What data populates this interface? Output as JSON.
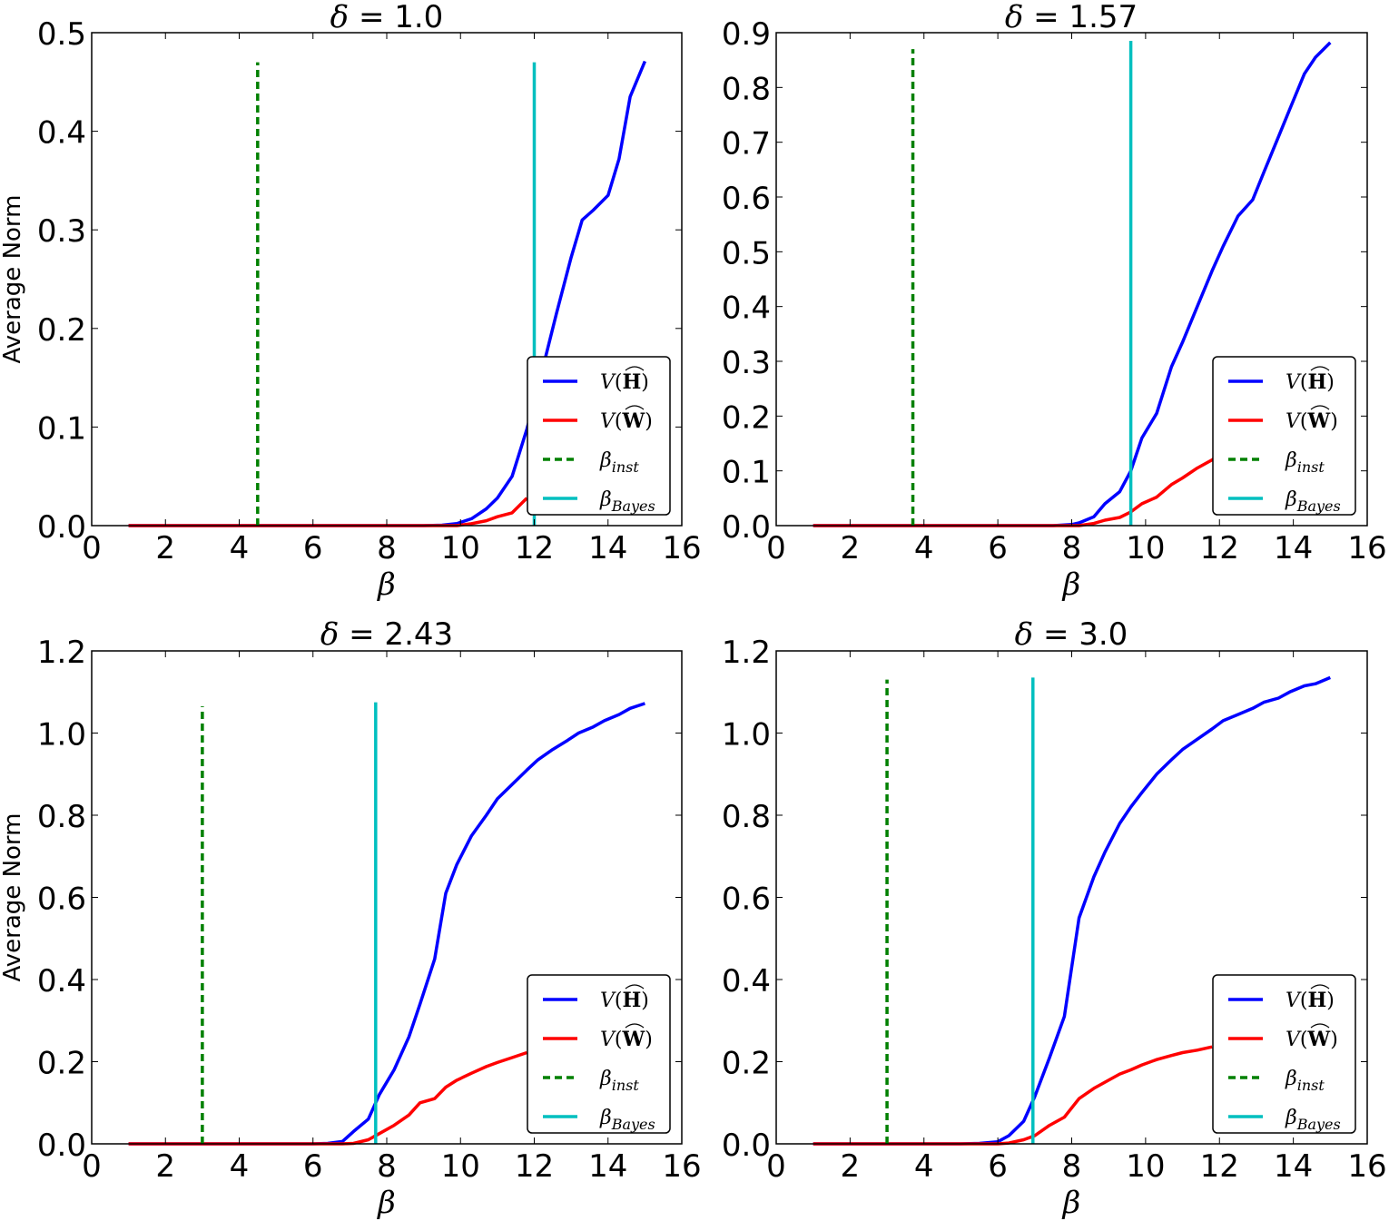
{
  "figure": {
    "ylabel": "Average Norm",
    "xlabel": "β"
  },
  "legend": {
    "items": [
      {
        "label": "V(Ĥ)",
        "label_main": "V(",
        "label_bold": "H",
        "label_end": ")",
        "color": "#0000ff",
        "style": "solid"
      },
      {
        "label": "V(Ŵ)",
        "label_main": "V(",
        "label_bold": "W",
        "label_end": ")",
        "color": "#ff0000",
        "style": "solid"
      },
      {
        "label": "β_inst",
        "label_main": "β",
        "label_sub": "inst",
        "color": "#008000",
        "style": "dashed"
      },
      {
        "label": "β_Bayes",
        "label_main": "β",
        "label_sub": "Bayes",
        "color": "#00bfbf",
        "style": "solid"
      }
    ]
  },
  "chart_data": [
    {
      "type": "line",
      "title": "δ = 1.0",
      "title_symbol": "δ",
      "title_value": "1.0",
      "xlabel": "β",
      "ylabel": "Average Norm",
      "xlim": [
        0,
        16
      ],
      "ylim": [
        0,
        0.5
      ],
      "xticks": [
        0,
        2,
        4,
        6,
        8,
        10,
        12,
        14,
        16
      ],
      "yticks": [
        0.0,
        0.1,
        0.2,
        0.3,
        0.4,
        0.5
      ],
      "ytick_labels": [
        "0.0",
        "0.1",
        "0.2",
        "0.3",
        "0.4",
        "0.5"
      ],
      "legend_position": "lower right",
      "grid": false,
      "x": [
        1.0,
        2.0,
        3.0,
        4.0,
        5.0,
        6.0,
        7.0,
        8.0,
        9.0,
        9.5,
        9.9,
        10.3,
        10.7,
        11.0,
        11.4,
        11.8,
        12.2,
        12.6,
        13.0,
        13.3,
        13.6,
        14.0,
        14.3,
        14.6,
        15.0
      ],
      "series": [
        {
          "name": "V(Ĥ)",
          "color": "#0000ff",
          "values": [
            0,
            0,
            0,
            0,
            0,
            0,
            0,
            0,
            0,
            0.0005,
            0.002,
            0.007,
            0.017,
            0.028,
            0.05,
            0.098,
            0.155,
            0.215,
            0.272,
            0.31,
            0.32,
            0.335,
            0.372,
            0.435,
            0.471
          ]
        },
        {
          "name": "V(Ŵ)",
          "color": "#ff0000",
          "values": [
            0,
            0,
            0,
            0,
            0,
            0,
            0,
            0,
            0,
            0,
            0,
            0.002,
            0.005,
            0.009,
            0.013,
            0.028,
            null,
            null,
            null,
            null,
            null,
            null,
            null,
            null,
            null
          ]
        }
      ],
      "vlines": [
        {
          "name": "β_inst",
          "x": 4.5,
          "ymax": 0.47,
          "color": "#008000",
          "style": "dashed"
        },
        {
          "name": "β_Bayes",
          "x": 12.0,
          "ymax": 0.47,
          "color": "#00bfbf",
          "style": "solid"
        }
      ]
    },
    {
      "type": "line",
      "title": "δ = 1.57",
      "title_symbol": "δ",
      "title_value": "1.57",
      "xlabel": "β",
      "ylabel": "",
      "xlim": [
        0,
        16
      ],
      "ylim": [
        0,
        0.9
      ],
      "xticks": [
        0,
        2,
        4,
        6,
        8,
        10,
        12,
        14,
        16
      ],
      "yticks": [
        0.0,
        0.1,
        0.2,
        0.3,
        0.4,
        0.5,
        0.6,
        0.7,
        0.8,
        0.9
      ],
      "ytick_labels": [
        "0.0",
        "0.1",
        "0.2",
        "0.3",
        "0.4",
        "0.5",
        "0.6",
        "0.7",
        "0.8",
        "0.9"
      ],
      "legend_position": "lower right",
      "grid": false,
      "x": [
        1.0,
        2.0,
        3.0,
        4.0,
        5.0,
        6.0,
        7.0,
        7.5,
        8.0,
        8.2,
        8.6,
        8.9,
        9.3,
        9.6,
        9.9,
        10.3,
        10.7,
        11.0,
        11.4,
        11.8,
        12.1,
        12.5,
        12.9,
        13.2,
        13.6,
        13.9,
        14.3,
        14.6,
        15.0
      ],
      "series": [
        {
          "name": "V(Ĥ)",
          "color": "#0000ff",
          "values": [
            0,
            0,
            0,
            0,
            0,
            0,
            0,
            0,
            0.002,
            0.005,
            0.016,
            0.04,
            0.062,
            0.1,
            0.16,
            0.205,
            0.29,
            0.335,
            0.4,
            0.465,
            0.51,
            0.565,
            0.595,
            0.645,
            0.71,
            0.76,
            0.825,
            0.855,
            0.882
          ]
        },
        {
          "name": "V(Ŵ)",
          "color": "#ff0000",
          "values": [
            0,
            0,
            0,
            0,
            0,
            0,
            0,
            0,
            0,
            0,
            0.004,
            0.01,
            0.015,
            0.025,
            0.04,
            0.052,
            0.075,
            0.087,
            0.105,
            0.12,
            0.135,
            null,
            null,
            null,
            null,
            null,
            null,
            null,
            null
          ]
        }
      ],
      "vlines": [
        {
          "name": "β_inst",
          "x": 3.7,
          "ymax": 0.87,
          "color": "#008000",
          "style": "dashed"
        },
        {
          "name": "β_Bayes",
          "x": 9.6,
          "ymax": 0.885,
          "color": "#00bfbf",
          "style": "solid"
        }
      ]
    },
    {
      "type": "line",
      "title": "δ = 2.43",
      "title_symbol": "δ",
      "title_value": "2.43",
      "xlabel": "β",
      "ylabel": "Average Norm",
      "xlim": [
        0,
        16
      ],
      "ylim": [
        0,
        1.2
      ],
      "xticks": [
        0,
        2,
        4,
        6,
        8,
        10,
        12,
        14,
        16
      ],
      "yticks": [
        0.0,
        0.2,
        0.4,
        0.6,
        0.8,
        1.0,
        1.2
      ],
      "ytick_labels": [
        "0.0",
        "0.2",
        "0.4",
        "0.6",
        "0.8",
        "1.0",
        "1.2"
      ],
      "legend_position": "lower right",
      "grid": false,
      "x": [
        1.0,
        2.0,
        3.0,
        4.0,
        5.0,
        6.0,
        6.4,
        6.8,
        7.1,
        7.5,
        7.8,
        8.2,
        8.6,
        8.9,
        9.3,
        9.6,
        9.9,
        10.3,
        10.7,
        11.0,
        11.4,
        11.8,
        12.1,
        12.5,
        12.9,
        13.2,
        13.6,
        13.9,
        14.3,
        14.6,
        15.0
      ],
      "series": [
        {
          "name": "V(Ĥ)",
          "color": "#0000ff",
          "values": [
            0,
            0,
            0,
            0,
            0,
            0,
            0.001,
            0.006,
            0.03,
            0.06,
            0.12,
            0.18,
            0.26,
            0.34,
            0.45,
            0.61,
            0.68,
            0.75,
            0.8,
            0.84,
            0.875,
            0.91,
            0.935,
            0.96,
            0.982,
            1.0,
            1.015,
            1.03,
            1.045,
            1.06,
            1.072
          ]
        },
        {
          "name": "V(Ŵ)",
          "color": "#ff0000",
          "values": [
            0,
            0,
            0,
            0,
            0,
            0,
            0,
            0,
            0.001,
            0.01,
            0.025,
            0.045,
            0.07,
            0.1,
            0.11,
            0.138,
            0.155,
            0.172,
            0.188,
            0.198,
            0.21,
            0.222,
            null,
            null,
            null,
            null,
            null,
            null,
            null,
            null,
            null
          ]
        }
      ],
      "vlines": [
        {
          "name": "β_inst",
          "x": 3.0,
          "ymax": 1.065,
          "color": "#008000",
          "style": "dashed"
        },
        {
          "name": "β_Bayes",
          "x": 7.7,
          "ymax": 1.075,
          "color": "#00bfbf",
          "style": "solid"
        }
      ]
    },
    {
      "type": "line",
      "title": "δ = 3.0",
      "title_symbol": "δ",
      "title_value": "3.0",
      "xlabel": "β",
      "ylabel": "",
      "xlim": [
        0,
        16
      ],
      "ylim": [
        0,
        1.2
      ],
      "xticks": [
        0,
        2,
        4,
        6,
        8,
        10,
        12,
        14,
        16
      ],
      "yticks": [
        0.0,
        0.2,
        0.4,
        0.6,
        0.8,
        1.0,
        1.2
      ],
      "ytick_labels": [
        "0.0",
        "0.2",
        "0.4",
        "0.6",
        "0.8",
        "1.0",
        "1.2"
      ],
      "legend_position": "lower right",
      "grid": false,
      "x": [
        1.0,
        2.0,
        3.0,
        4.0,
        5.0,
        5.5,
        6.0,
        6.3,
        6.7,
        7.0,
        7.4,
        7.8,
        8.2,
        8.6,
        8.9,
        9.3,
        9.6,
        9.9,
        10.3,
        10.7,
        11.0,
        11.4,
        11.8,
        12.1,
        12.5,
        12.9,
        13.2,
        13.6,
        13.9,
        14.3,
        14.6,
        15.0
      ],
      "series": [
        {
          "name": "V(Ĥ)",
          "color": "#0000ff",
          "values": [
            0,
            0,
            0,
            0,
            0,
            0.001,
            0.005,
            0.02,
            0.055,
            0.115,
            0.21,
            0.31,
            0.55,
            0.65,
            0.71,
            0.78,
            0.82,
            0.855,
            0.9,
            0.935,
            0.96,
            0.985,
            1.01,
            1.03,
            1.045,
            1.06,
            1.075,
            1.085,
            1.1,
            1.115,
            1.12,
            1.135
          ]
        },
        {
          "name": "V(Ŵ)",
          "color": "#ff0000",
          "values": [
            0,
            0,
            0,
            0,
            0,
            0,
            0,
            0.002,
            0.01,
            0.02,
            0.045,
            0.065,
            0.11,
            0.135,
            0.15,
            0.17,
            0.18,
            0.192,
            0.205,
            0.215,
            0.222,
            0.228,
            0.236,
            null,
            null,
            null,
            null,
            null,
            null,
            null,
            null,
            null
          ]
        }
      ],
      "vlines": [
        {
          "name": "β_inst",
          "x": 3.0,
          "ymax": 1.13,
          "color": "#008000",
          "style": "dashed"
        },
        {
          "name": "β_Bayes",
          "x": 6.95,
          "ymax": 1.135,
          "color": "#00bfbf",
          "style": "solid"
        }
      ]
    }
  ]
}
